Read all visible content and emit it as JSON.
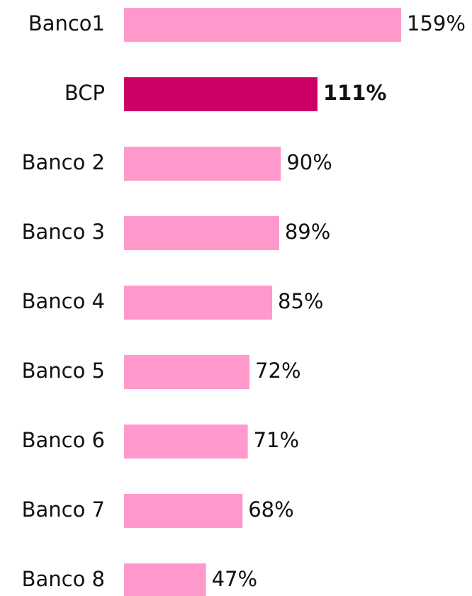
{
  "chart_data": {
    "type": "barh",
    "categories": [
      "Banco1",
      "BCP",
      "Banco 2",
      "Banco 3",
      "Banco 4",
      "Banco 5",
      "Banco 6",
      "Banco 7",
      "Banco 8"
    ],
    "values": [
      159,
      111,
      90,
      89,
      85,
      72,
      71,
      68,
      47
    ],
    "value_labels": [
      "159%",
      "111%",
      "90%",
      "89%",
      "85%",
      "72%",
      "71%",
      "68%",
      "47%"
    ],
    "colors": [
      "#ff99cc",
      "#cc0066",
      "#ff99cc",
      "#ff99cc",
      "#ff99cc",
      "#ff99cc",
      "#ff99cc",
      "#ff99cc",
      "#ff99cc"
    ],
    "bold": [
      false,
      true,
      false,
      false,
      false,
      false,
      false,
      false,
      false
    ]
  }
}
